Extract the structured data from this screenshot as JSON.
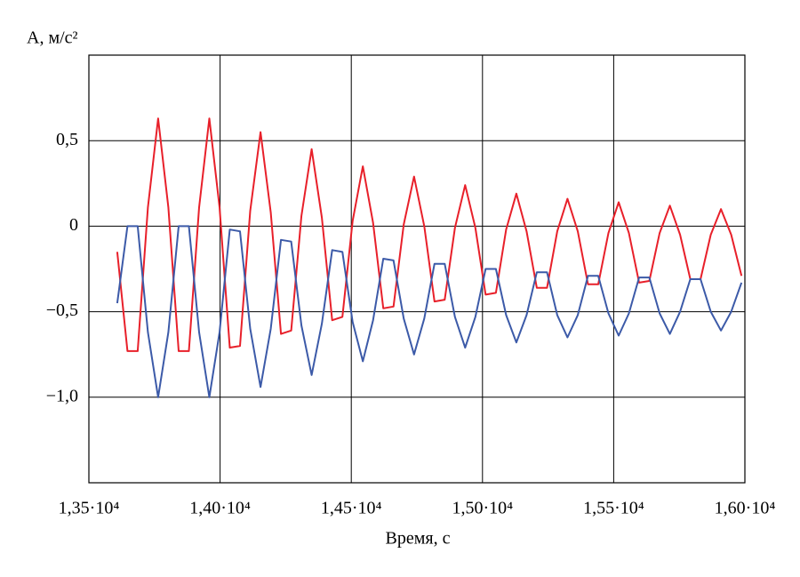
{
  "chart_data": {
    "type": "line",
    "y_label": "A, м/с²",
    "x_label": "Время, с",
    "xlim": [
      13500,
      16000
    ],
    "xticks": [
      {
        "value": 13500,
        "label": "1,35·10⁴"
      },
      {
        "value": 14000,
        "label": "1,40·10⁴"
      },
      {
        "value": 14500,
        "label": "1,45·10⁴"
      },
      {
        "value": 15000,
        "label": "1,50·10⁴"
      },
      {
        "value": 15500,
        "label": "1,55·10⁴"
      },
      {
        "value": 16000,
        "label": "1,60·10⁴"
      }
    ],
    "ylim": [
      -1.5,
      1.0
    ],
    "yticks": [
      {
        "value": 0.5,
        "label": "0,5"
      },
      0,
      {
        "value": -0.5,
        "label": "−0,5"
      },
      {
        "value": -1,
        "label": "−1,0"
      }
    ],
    "grid": true,
    "x": [
      13608,
      13647,
      13686,
      13725,
      13764,
      13803,
      13842,
      13881,
      13920,
      13959,
      13998,
      14037,
      14076,
      14115,
      14154,
      14193,
      14232,
      14271,
      14310,
      14349,
      14388,
      14427,
      14466,
      14505,
      14544,
      14583,
      14622,
      14661,
      14700,
      14739,
      14778,
      14817,
      14856,
      14895,
      14934,
      14973,
      15012,
      15051,
      15090,
      15129,
      15168,
      15207,
      15246,
      15285,
      15324,
      15363,
      15402,
      15441,
      15480,
      15519,
      15558,
      15597,
      15636,
      15675,
      15714,
      15753,
      15792,
      15831,
      15870,
      15909,
      15948,
      15987
    ],
    "series": [
      {
        "color": "#e8202a",
        "values": [
          -0.15,
          -0.73,
          -0.73,
          0.11,
          0.63,
          0.11,
          -0.73,
          -0.73,
          0.11,
          0.63,
          0.11,
          -0.71,
          -0.7,
          0.09,
          0.55,
          0.08,
          -0.63,
          -0.61,
          0.06,
          0.45,
          0.05,
          -0.55,
          -0.53,
          0.03,
          0.35,
          0.02,
          -0.48,
          -0.47,
          0.01,
          0.29,
          0.0,
          -0.44,
          -0.43,
          -0.01,
          0.24,
          -0.01,
          -0.4,
          -0.39,
          -0.02,
          0.19,
          -0.03,
          -0.36,
          -0.36,
          -0.03,
          0.16,
          -0.03,
          -0.34,
          -0.34,
          -0.04,
          0.14,
          -0.04,
          -0.33,
          -0.32,
          -0.04,
          0.12,
          -0.05,
          -0.31,
          -0.31,
          -0.05,
          0.1,
          -0.05,
          -0.29
        ]
      },
      {
        "color": "#3c5aa8",
        "values": [
          -0.45,
          0.0,
          0.0,
          -0.62,
          -1.0,
          -0.62,
          0.0,
          0.0,
          -0.62,
          -1.0,
          -0.62,
          -0.02,
          -0.03,
          -0.6,
          -0.94,
          -0.6,
          -0.08,
          -0.09,
          -0.58,
          -0.87,
          -0.57,
          -0.14,
          -0.15,
          -0.56,
          -0.79,
          -0.55,
          -0.19,
          -0.2,
          -0.54,
          -0.75,
          -0.54,
          -0.22,
          -0.22,
          -0.53,
          -0.71,
          -0.53,
          -0.25,
          -0.25,
          -0.52,
          -0.68,
          -0.52,
          -0.27,
          -0.27,
          -0.52,
          -0.65,
          -0.52,
          -0.29,
          -0.29,
          -0.51,
          -0.64,
          -0.51,
          -0.3,
          -0.3,
          -0.51,
          -0.63,
          -0.5,
          -0.31,
          -0.31,
          -0.5,
          -0.61,
          -0.5,
          -0.33
        ]
      }
    ]
  }
}
